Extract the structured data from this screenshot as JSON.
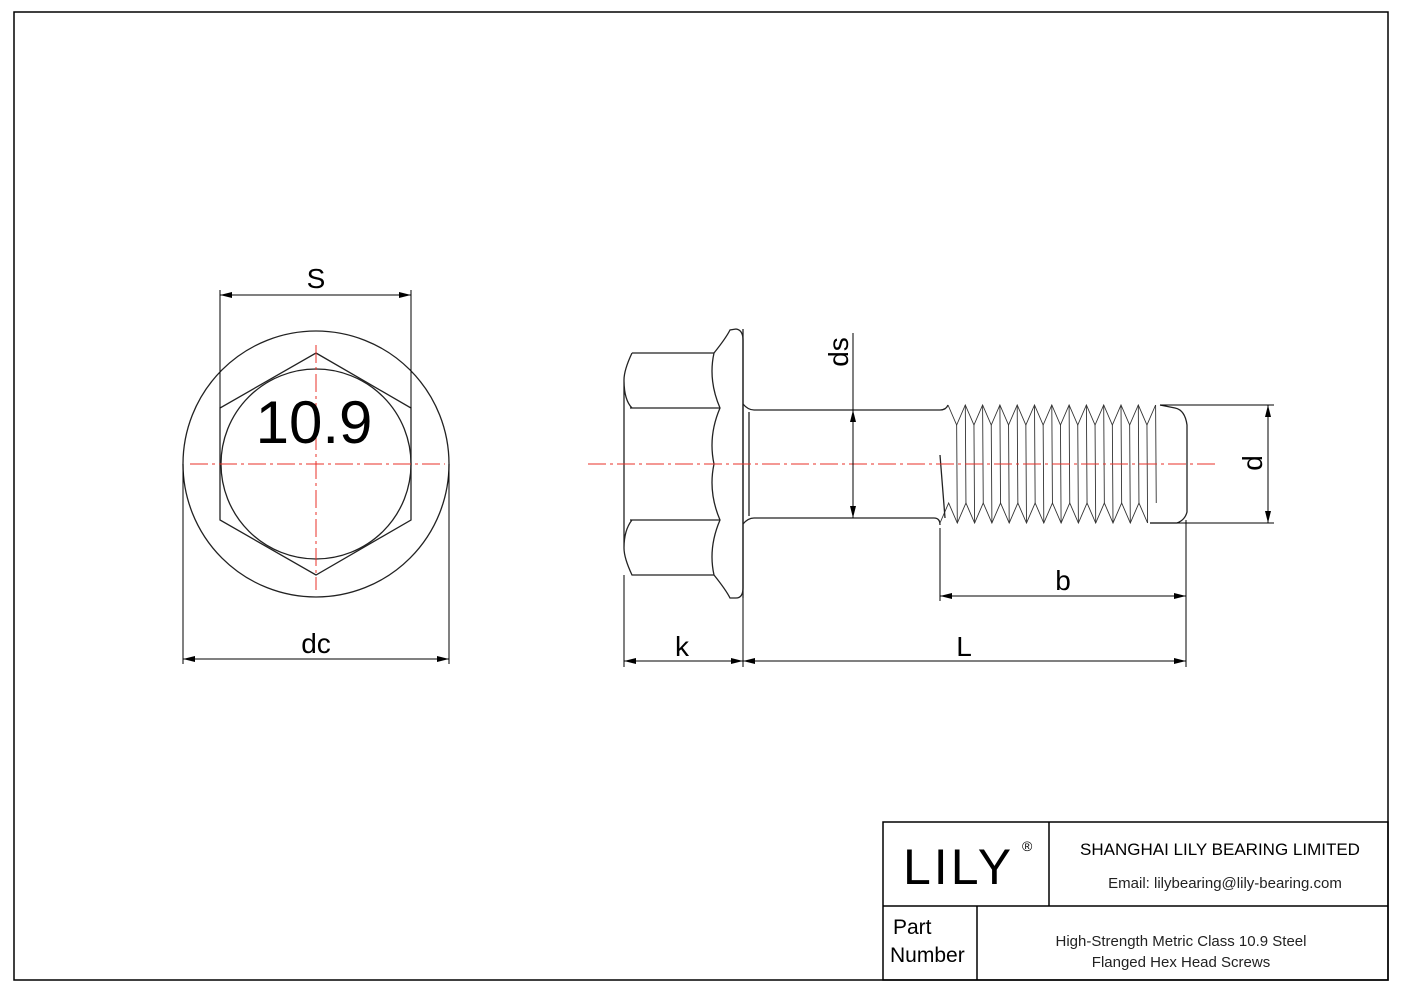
{
  "drawing": {
    "grade_marking": "10.9",
    "labels": {
      "s": "S",
      "dc": "dc",
      "ds": "ds",
      "d": "d",
      "b": "b",
      "k": "k",
      "L": "L"
    },
    "centerline_color": "#e8302a"
  },
  "title_block": {
    "logo": "LILY",
    "logo_mark": "®",
    "company": "SHANGHAI LILY BEARING LIMITED",
    "email": "Email: lilybearing@lily-bearing.com",
    "part_label_line1": "Part",
    "part_label_line2": "Number",
    "part_name_line1": "High-Strength Metric Class 10.9 Steel",
    "part_name_line2": "Flanged Hex Head Screws"
  }
}
